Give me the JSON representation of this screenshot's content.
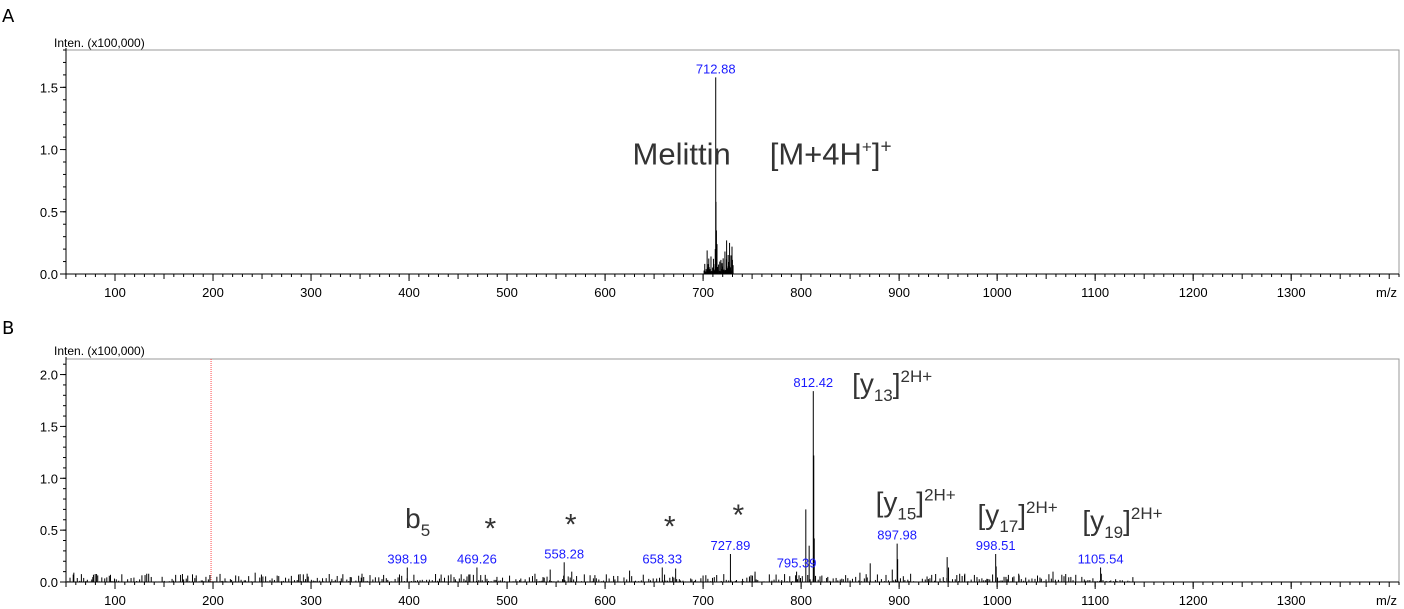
{
  "chart_data": [
    {
      "type": "line",
      "panel_label": "A",
      "ylabel": "Inten. (x100,000)",
      "xlabel": "m/z",
      "xlim": [
        50,
        1410
      ],
      "ylim": [
        0,
        1.8
      ],
      "x_ticks": [
        100,
        200,
        300,
        400,
        500,
        600,
        700,
        800,
        900,
        1000,
        1100,
        1200,
        1300
      ],
      "y_ticks": [
        0.0,
        0.5,
        1.0,
        1.5
      ],
      "y_tick_labels": [
        "0.0",
        "0.5",
        "1.0",
        "1.5"
      ],
      "label_color": "#1a1aff",
      "peak_labels": [
        {
          "x": 712.88,
          "y": 1.58,
          "text": "712.88"
        }
      ],
      "annotations": [
        {
          "text": "Melittin",
          "x": 628,
          "y": 0.88,
          "size": 31
        },
        {
          "text_base": "[M+4H",
          "sup_inner": "+",
          "text_mid": "]",
          "sup_outer": "+",
          "x": 768,
          "y": 0.88,
          "size": 31
        }
      ],
      "peaks": [
        {
          "x": 712.88,
          "y": 1.58
        },
        {
          "x": 713.1,
          "y": 0.58
        },
        {
          "x": 713.6,
          "y": 0.35
        },
        {
          "x": 712.4,
          "y": 0.2
        },
        {
          "x": 714.2,
          "y": 0.24
        },
        {
          "x": 724.0,
          "y": 0.27
        },
        {
          "x": 727.0,
          "y": 0.25
        },
        {
          "x": 729.5,
          "y": 0.22
        }
      ],
      "noise": {
        "from": 701,
        "to": 731,
        "max": 0.2,
        "min": 0.02,
        "step": 0.5,
        "seed": 7
      }
    },
    {
      "type": "line",
      "panel_label": "B",
      "ylabel": "Inten. (x100,000)",
      "xlabel": "m/z",
      "xlim": [
        50,
        1410
      ],
      "ylim": [
        0,
        2.15
      ],
      "x_ticks": [
        100,
        200,
        300,
        400,
        500,
        600,
        700,
        800,
        900,
        1000,
        1100,
        1200,
        1300
      ],
      "y_ticks": [
        0.0,
        0.5,
        1.0,
        1.5,
        2.0
      ],
      "y_tick_labels": [
        "0.0",
        "0.5",
        "1.0",
        "1.5",
        "2.0"
      ],
      "marker_line": {
        "x": 198,
        "color": "#ff4d4d"
      },
      "label_color": "#1a1aff",
      "peak_labels": [
        {
          "x": 398.19,
          "y": 0.14,
          "text": "398.19"
        },
        {
          "x": 469.26,
          "y": 0.14,
          "text": "469.26"
        },
        {
          "x": 558.28,
          "y": 0.19,
          "text": "558.28"
        },
        {
          "x": 658.33,
          "y": 0.14,
          "text": "658.33"
        },
        {
          "x": 727.89,
          "y": 0.27,
          "text": "727.89"
        },
        {
          "x": 795.39,
          "y": 0.1,
          "text": "795.39"
        },
        {
          "x": 812.42,
          "y": 1.84,
          "text": "812.42"
        },
        {
          "x": 897.98,
          "y": 0.37,
          "text": "897.98"
        },
        {
          "x": 998.51,
          "y": 0.27,
          "text": "998.51"
        },
        {
          "x": 1105.54,
          "y": 0.14,
          "text": "1105.54"
        }
      ],
      "annotations": [
        {
          "text_base": "b",
          "sub": "5",
          "x": 396,
          "y": 0.52,
          "size": 28
        },
        {
          "text": "*",
          "x": 477,
          "y": 0.42,
          "size": 30
        },
        {
          "text": "*",
          "x": 559,
          "y": 0.46,
          "size": 30
        },
        {
          "text": "*",
          "x": 660,
          "y": 0.44,
          "size": 30
        },
        {
          "text": "*",
          "x": 730,
          "y": 0.55,
          "size": 30
        },
        {
          "text_base": "[y",
          "sub": "13",
          "text_mid": "]",
          "sup_outer": "2H+",
          "x": 852,
          "y": 1.82,
          "size": 28
        },
        {
          "text_base": "[y",
          "sub": "15",
          "text_mid": "]",
          "sup_outer": "2H+",
          "x": 876,
          "y": 0.68,
          "size": 28
        },
        {
          "text_base": "[y",
          "sub": "17",
          "text_mid": "]",
          "sup_outer": "2H+",
          "x": 980,
          "y": 0.56,
          "size": 28
        },
        {
          "text_base": "[y",
          "sub": "19",
          "text_mid": "]",
          "sup_outer": "2H+",
          "x": 1087,
          "y": 0.5,
          "size": 28
        }
      ],
      "peaks": [
        {
          "x": 812.42,
          "y": 1.84
        },
        {
          "x": 812.9,
          "y": 1.22
        },
        {
          "x": 813.4,
          "y": 0.42
        },
        {
          "x": 804.8,
          "y": 0.7
        },
        {
          "x": 808.2,
          "y": 0.35
        },
        {
          "x": 897.98,
          "y": 0.37
        },
        {
          "x": 898.5,
          "y": 0.22
        },
        {
          "x": 893.0,
          "y": 0.12
        },
        {
          "x": 870.5,
          "y": 0.18
        },
        {
          "x": 949.0,
          "y": 0.24
        },
        {
          "x": 950.4,
          "y": 0.14
        },
        {
          "x": 998.51,
          "y": 0.27
        },
        {
          "x": 999.0,
          "y": 0.15
        },
        {
          "x": 1057.0,
          "y": 0.1
        },
        {
          "x": 1105.54,
          "y": 0.14
        },
        {
          "x": 1106.2,
          "y": 0.08
        },
        {
          "x": 398.19,
          "y": 0.14
        },
        {
          "x": 469.26,
          "y": 0.14
        },
        {
          "x": 544.0,
          "y": 0.12
        },
        {
          "x": 558.28,
          "y": 0.19
        },
        {
          "x": 566.0,
          "y": 0.1
        },
        {
          "x": 658.33,
          "y": 0.14
        },
        {
          "x": 672.0,
          "y": 0.13
        },
        {
          "x": 727.89,
          "y": 0.27
        },
        {
          "x": 795.39,
          "y": 0.1
        },
        {
          "x": 58.0,
          "y": 0.09
        },
        {
          "x": 78.0,
          "y": 0.07
        },
        {
          "x": 243.0,
          "y": 0.09
        },
        {
          "x": 296.0,
          "y": 0.08
        },
        {
          "x": 352.0,
          "y": 0.08
        },
        {
          "x": 625.0,
          "y": 0.11
        },
        {
          "x": 753.0,
          "y": 0.1
        },
        {
          "x": 860.0,
          "y": 0.09
        },
        {
          "x": 967.0,
          "y": 0.08
        },
        {
          "x": 1022.0,
          "y": 0.08
        },
        {
          "x": 1066.0,
          "y": 0.07
        }
      ],
      "noise": {
        "from": 52,
        "to": 1140,
        "max": 0.08,
        "min": 0.005,
        "step": 2.2,
        "seed": 13
      }
    }
  ]
}
